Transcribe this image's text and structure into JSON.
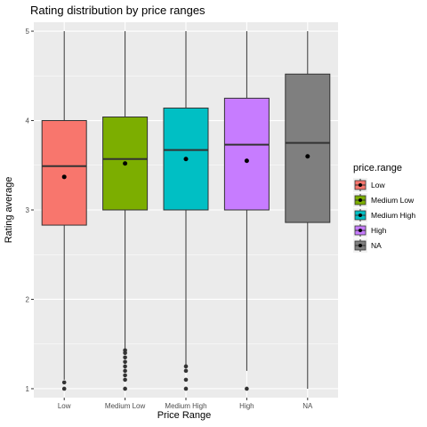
{
  "chart_data": {
    "type": "box",
    "title": "Rating distribution by price ranges",
    "xlabel": "Price Range",
    "ylabel": "Rating average",
    "ylim": [
      0.9,
      5.1
    ],
    "yticks": [
      1,
      2,
      3,
      4,
      5
    ],
    "categories": [
      "Low",
      "Medium Low",
      "Medium High",
      "High",
      "NA"
    ],
    "legend": {
      "title": "price.range",
      "position": "right",
      "entries": [
        "Low",
        "Medium Low",
        "Medium High",
        "High",
        "NA"
      ]
    },
    "grid": true,
    "boxes": [
      {
        "category": "Low",
        "color": "#F8766D",
        "whisker_low": 1.1,
        "q1": 2.83,
        "median": 3.49,
        "q3": 4.0,
        "whisker_high": 5.0,
        "mean": 3.37,
        "outliers": [
          1.0,
          1.07
        ]
      },
      {
        "category": "Medium Low",
        "color": "#7CAE00",
        "whisker_low": 1.45,
        "q1": 3.0,
        "median": 3.57,
        "q3": 4.04,
        "whisker_high": 5.0,
        "mean": 3.52,
        "outliers": [
          1.0,
          1.1,
          1.15,
          1.2,
          1.25,
          1.3,
          1.35,
          1.4,
          1.43
        ]
      },
      {
        "category": "Medium High",
        "color": "#00BFC4",
        "whisker_low": 1.27,
        "q1": 3.0,
        "median": 3.67,
        "q3": 4.14,
        "whisker_high": 5.0,
        "mean": 3.57,
        "outliers": [
          1.0,
          1.1,
          1.2,
          1.25
        ]
      },
      {
        "category": "High",
        "color": "#C77CFF",
        "whisker_low": 1.2,
        "q1": 3.0,
        "median": 3.73,
        "q3": 4.25,
        "whisker_high": 5.0,
        "mean": 3.55,
        "outliers": [
          1.0
        ]
      },
      {
        "category": "NA",
        "color": "#7F7F7F",
        "whisker_low": 1.0,
        "q1": 2.86,
        "median": 3.75,
        "q3": 4.52,
        "whisker_high": 5.0,
        "mean": 3.6,
        "outliers": []
      }
    ]
  }
}
